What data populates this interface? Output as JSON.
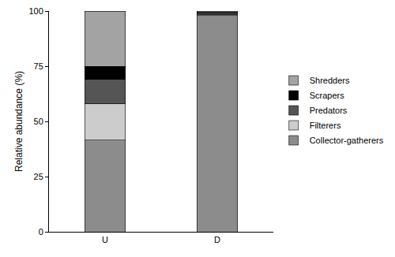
{
  "chart_data": {
    "type": "bar",
    "y_label": "Relative abundance (%)",
    "categories": [
      "U",
      "D"
    ],
    "series": [
      {
        "name": "Collector-gatherers",
        "color": "#8c8c8c",
        "values": [
          41.5,
          98
        ]
      },
      {
        "name": "Filterers",
        "color": "#cccccc",
        "values": [
          16.5,
          0.3
        ]
      },
      {
        "name": "Predators",
        "color": "#555555",
        "values": [
          11,
          0.7
        ]
      },
      {
        "name": "Scrapers",
        "color": "#000000",
        "values": [
          6,
          0.3
        ]
      },
      {
        "name": "Shredders",
        "color": "#a3a3a3",
        "values": [
          25,
          0.7
        ]
      }
    ],
    "stacked": true,
    "ylim": [
      0,
      100
    ],
    "yticks": [
      0,
      25,
      50,
      75,
      100
    ],
    "grid": false,
    "legend": "right"
  }
}
